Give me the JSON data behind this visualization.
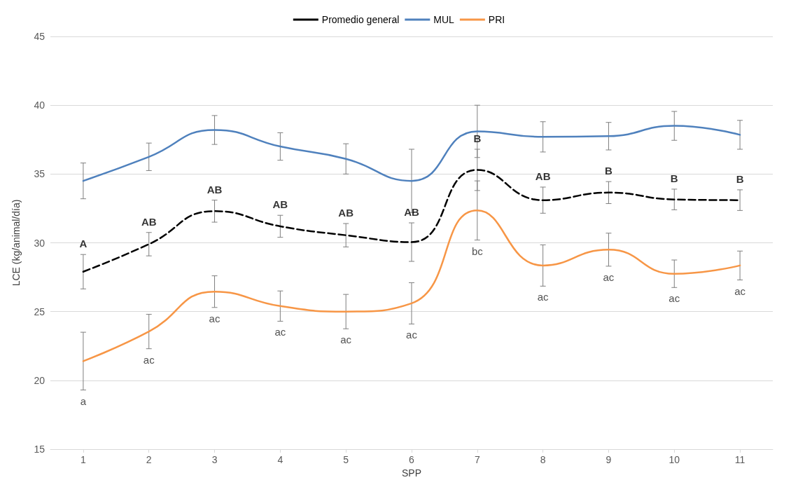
{
  "chart_data": {
    "type": "line",
    "xlabel": "SPP",
    "ylabel": "LCE (kg/animal/día)",
    "categories": [
      "1",
      "2",
      "3",
      "4",
      "5",
      "6",
      "7",
      "8",
      "9",
      "10",
      "11"
    ],
    "ylim": [
      15,
      45
    ],
    "yticks": [
      15,
      20,
      25,
      30,
      35,
      40,
      45
    ],
    "grid": "y",
    "legend": "top",
    "marker": "none",
    "series": [
      {
        "name": "Promedio general",
        "color": "#000000",
        "line_style": "dashed",
        "values": [
          27.9,
          29.9,
          32.3,
          31.2,
          30.55,
          30.05,
          35.3,
          33.1,
          33.65,
          33.15,
          33.1
        ],
        "errors": [
          1.25,
          0.85,
          0.8,
          0.8,
          0.85,
          1.4,
          1.5,
          0.95,
          0.8,
          0.75,
          0.75
        ]
      },
      {
        "name": "MUL",
        "color": "#4f81bd",
        "line_style": "solid",
        "values": [
          34.5,
          36.25,
          38.2,
          37.0,
          36.1,
          34.5,
          38.1,
          37.7,
          37.75,
          38.5,
          37.85
        ],
        "errors": [
          1.3,
          1.0,
          1.05,
          1.0,
          1.1,
          2.3,
          1.9,
          1.1,
          1.0,
          1.05,
          1.05
        ]
      },
      {
        "name": "PRI",
        "color": "#f79646",
        "line_style": "solid",
        "values": [
          21.4,
          23.55,
          26.45,
          25.4,
          25.0,
          25.6,
          32.35,
          28.35,
          29.5,
          27.75,
          28.35
        ],
        "errors": [
          2.1,
          1.25,
          1.15,
          1.1,
          1.25,
          1.5,
          2.15,
          1.5,
          1.2,
          1.0,
          1.05
        ]
      }
    ],
    "annotations": [
      {
        "text": "A",
        "x": "1",
        "y": 29.15
      },
      {
        "text": "AB",
        "x": "2",
        "y": 30.75
      },
      {
        "text": "AB",
        "x": "3",
        "y": 33.1
      },
      {
        "text": "AB",
        "x": "4",
        "y": 32.0
      },
      {
        "text": "AB",
        "x": "5",
        "y": 31.4
      },
      {
        "text": "AB",
        "x": "6",
        "y": 31.45
      },
      {
        "text": "B",
        "x": "7",
        "y": 36.8
      },
      {
        "text": "AB",
        "x": "8",
        "y": 34.05
      },
      {
        "text": "B",
        "x": "9",
        "y": 34.45
      },
      {
        "text": "B",
        "x": "10",
        "y": 33.9
      },
      {
        "text": "B",
        "x": "11",
        "y": 33.85
      },
      {
        "text": "a",
        "x": "1",
        "y": 19.3
      },
      {
        "text": "ac",
        "x": "2",
        "y": 22.3
      },
      {
        "text": "ac",
        "x": "3",
        "y": 25.3
      },
      {
        "text": "ac",
        "x": "4",
        "y": 24.3
      },
      {
        "text": "ac",
        "x": "5",
        "y": 23.75
      },
      {
        "text": "ac",
        "x": "6",
        "y": 24.1
      },
      {
        "text": "bc",
        "x": "7",
        "y": 30.2
      },
      {
        "text": "ac",
        "x": "8",
        "y": 26.85
      },
      {
        "text": "ac",
        "x": "9",
        "y": 28.3
      },
      {
        "text": "ac",
        "x": "10",
        "y": 26.75
      },
      {
        "text": "ac",
        "x": "11",
        "y": 27.3
      }
    ]
  }
}
